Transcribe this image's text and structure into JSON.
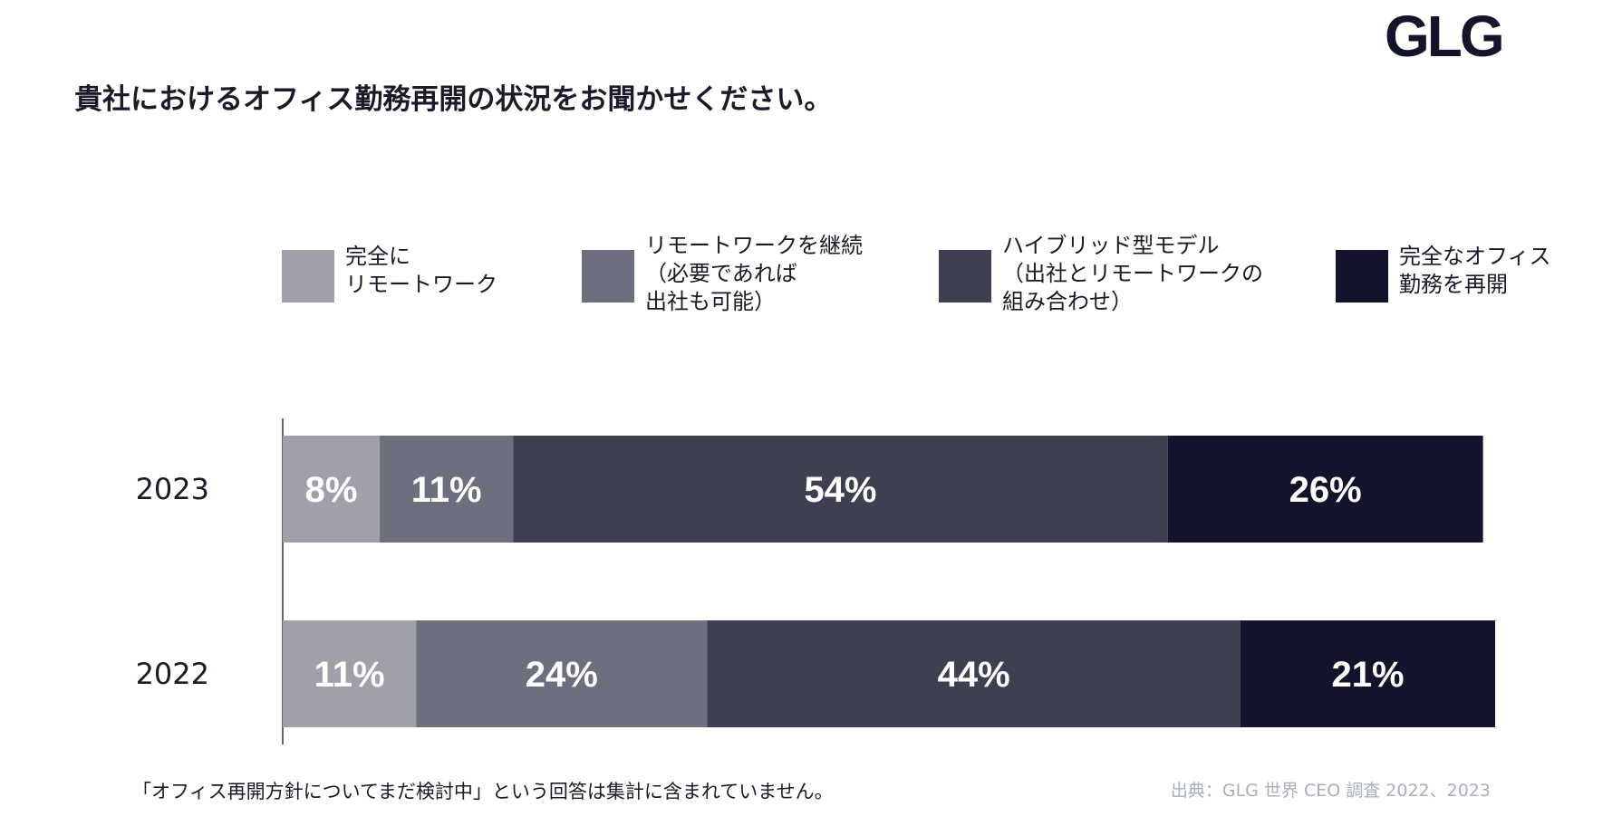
{
  "logo": "GLG",
  "title": "貴社におけるオフィス勤務再開の状況をお聞かせください。",
  "footnote": "「オフィス再開方針についてまだ検討中」という回答は集計に含まれていません。",
  "source": "出典：GLG 世界 CEO 調査 2022、2023",
  "legend": [
    {
      "label": "完全に\nリモートワーク",
      "color": "#a0a0aa"
    },
    {
      "label": "リモートワークを継続\n（必要であれば\n出社も可能）",
      "color": "#6e6f7e"
    },
    {
      "label": "ハイブリッド型モデル\n（出社とリモートワークの\n組み合わせ）",
      "color": "#3e4052"
    },
    {
      "label": "完全なオフィス\n勤務を再開",
      "color": "#13132b"
    }
  ],
  "chart_data": {
    "type": "bar",
    "orientation": "horizontal",
    "stacked": true,
    "categories": [
      "2023",
      "2022"
    ],
    "series": [
      {
        "name": "完全にリモートワーク",
        "values": [
          8,
          11
        ],
        "labels": [
          "8%",
          "11%"
        ],
        "color": "#a0a0aa"
      },
      {
        "name": "リモートワークを継続（必要であれば出社も可能）",
        "values": [
          11,
          24
        ],
        "labels": [
          "11%",
          "24%"
        ],
        "color": "#6e6f7e"
      },
      {
        "name": "ハイブリッド型モデル（出社とリモートワークの組み合わせ）",
        "values": [
          54,
          44
        ],
        "labels": [
          "54%",
          "44%"
        ],
        "color": "#3e4052"
      },
      {
        "name": "完全なオフィス勤務を再開",
        "values": [
          26,
          21
        ],
        "labels": [
          "26%",
          "21%"
        ],
        "color": "#13132b"
      }
    ],
    "xlim": [
      0,
      100
    ],
    "grid": false,
    "legend_position": "top"
  }
}
